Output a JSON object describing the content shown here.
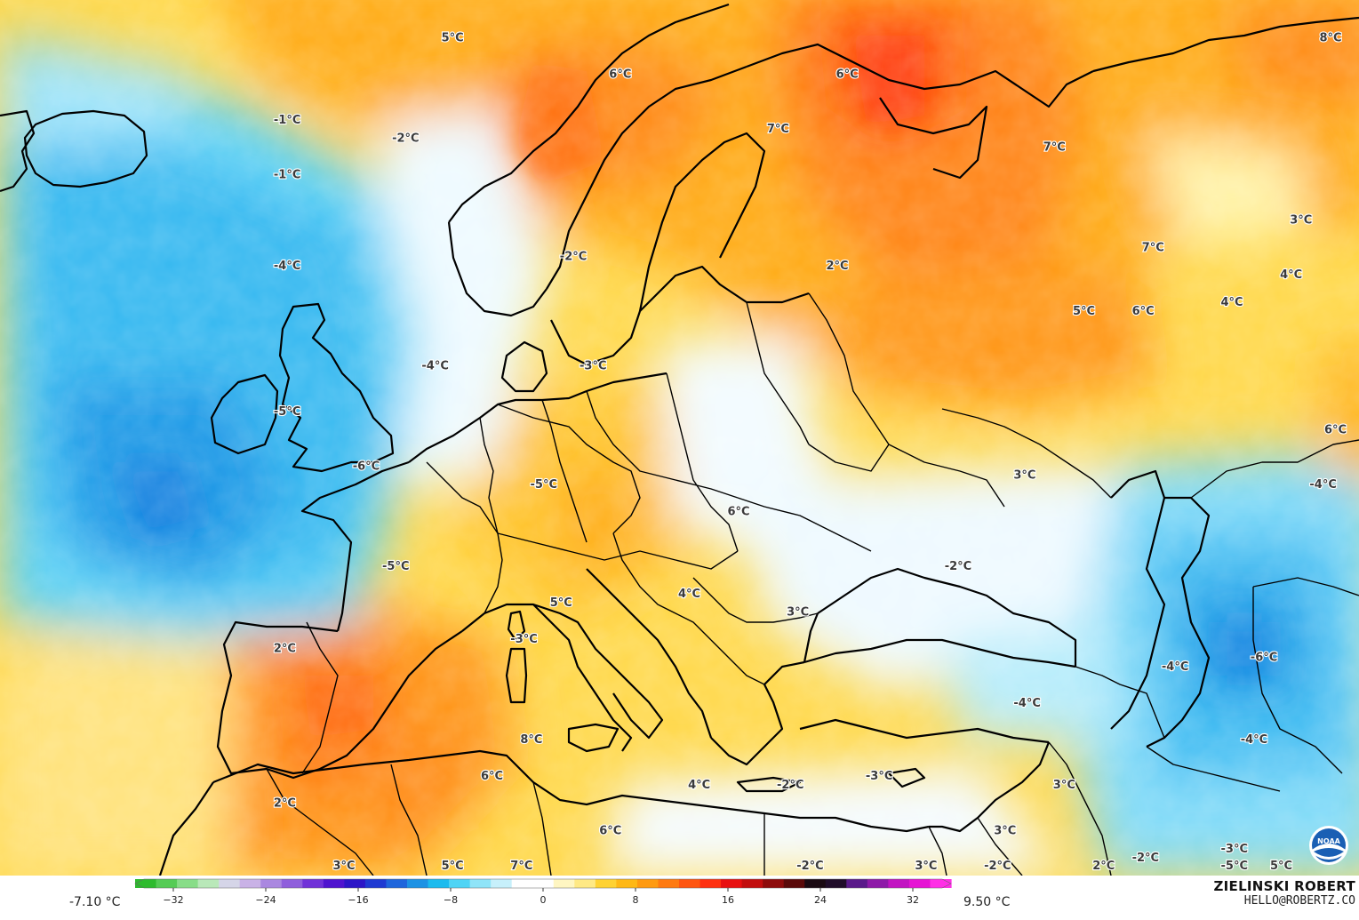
{
  "map": {
    "labels": [
      {
        "text": "5°C",
        "lon": -24,
        "lat": 72
      },
      {
        "text": "6°C",
        "lon": -7,
        "lat": 70
      },
      {
        "text": "6°C",
        "lon": 16,
        "lat": 70
      },
      {
        "text": "7°C",
        "lon": 9,
        "lat": 67
      },
      {
        "text": "7°C",
        "lon": 37,
        "lat": 66
      },
      {
        "text": "8°C",
        "lon": 65,
        "lat": 72
      },
      {
        "text": "-1°C",
        "lon": -41,
        "lat": 67.5
      },
      {
        "text": "-2°C",
        "lon": -29,
        "lat": 66.5
      },
      {
        "text": "-1°C",
        "lon": -41,
        "lat": 64.5
      },
      {
        "text": "-2°C",
        "lon": -12,
        "lat": 60
      },
      {
        "text": "2°C",
        "lon": 15,
        "lat": 59.5
      },
      {
        "text": "3°C",
        "lon": 62,
        "lat": 62
      },
      {
        "text": "7°C",
        "lon": 47,
        "lat": 60.5
      },
      {
        "text": "4°C",
        "lon": 61,
        "lat": 59
      },
      {
        "text": "4°C",
        "lon": 55,
        "lat": 57.5
      },
      {
        "text": "5°C",
        "lon": 40,
        "lat": 57
      },
      {
        "text": "6°C",
        "lon": 46,
        "lat": 57
      },
      {
        "text": "-4°C",
        "lon": -41,
        "lat": 59.5
      },
      {
        "text": "-4°C",
        "lon": -26,
        "lat": 54
      },
      {
        "text": "-3°C",
        "lon": -10,
        "lat": 54
      },
      {
        "text": "-5°C",
        "lon": -41,
        "lat": 51.5
      },
      {
        "text": "6°C",
        "lon": 66,
        "lat": 50.5
      },
      {
        "text": "-6°C",
        "lon": -33,
        "lat": 48.5
      },
      {
        "text": "-5°C",
        "lon": -15,
        "lat": 47.5
      },
      {
        "text": "3°C",
        "lon": 34,
        "lat": 48
      },
      {
        "text": "-4°C",
        "lon": 64,
        "lat": 47.5
      },
      {
        "text": "6°C",
        "lon": 5,
        "lat": 46
      },
      {
        "text": "-5°C",
        "lon": -30,
        "lat": 43
      },
      {
        "text": "-2°C",
        "lon": 27,
        "lat": 43
      },
      {
        "text": "4°C",
        "lon": 0,
        "lat": 41.5
      },
      {
        "text": "5°C",
        "lon": -13,
        "lat": 41
      },
      {
        "text": "3°C",
        "lon": 11,
        "lat": 40.5
      },
      {
        "text": "2°C",
        "lon": -41,
        "lat": 38.5
      },
      {
        "text": "-3°C",
        "lon": -17,
        "lat": 39
      },
      {
        "text": "-4°C",
        "lon": 49,
        "lat": 37.5
      },
      {
        "text": "-6°C",
        "lon": 58,
        "lat": 38
      },
      {
        "text": "-4°C",
        "lon": 34,
        "lat": 35.5
      },
      {
        "text": "8°C",
        "lon": -16,
        "lat": 33.5
      },
      {
        "text": "-4°C",
        "lon": 57,
        "lat": 33.5
      },
      {
        "text": "6°C",
        "lon": -20,
        "lat": 31.5
      },
      {
        "text": "4°C",
        "lon": 1,
        "lat": 31
      },
      {
        "text": "-2°C",
        "lon": 10,
        "lat": 31
      },
      {
        "text": "-3°C",
        "lon": 19,
        "lat": 31.5
      },
      {
        "text": "3°C",
        "lon": 38,
        "lat": 31
      },
      {
        "text": "2°C",
        "lon": -41,
        "lat": 30
      },
      {
        "text": "6°C",
        "lon": -8,
        "lat": 28.5
      },
      {
        "text": "3°C",
        "lon": 32,
        "lat": 28.5
      },
      {
        "text": "-2°C",
        "lon": 46,
        "lat": 27
      },
      {
        "text": "-3°C",
        "lon": 55,
        "lat": 27.5
      },
      {
        "text": "-6°C",
        "lon": 65,
        "lat": 27.5
      },
      {
        "text": "3°C",
        "lon": -35,
        "lat": 24.5
      },
      {
        "text": "7°C",
        "lon": -17,
        "lat": 24
      },
      {
        "text": "5°C",
        "lon": -24,
        "lat": 21.5
      },
      {
        "text": "-2°C",
        "lon": 12,
        "lat": 21.5
      },
      {
        "text": "3°C",
        "lon": 24,
        "lat": 21.5
      },
      {
        "text": "-2°C",
        "lon": 31,
        "lat": 21.5
      },
      {
        "text": "2°C",
        "lon": 42,
        "lat": 21.5
      },
      {
        "text": "-5°C",
        "lon": 55,
        "lat": 21.5
      },
      {
        "text": "5°C",
        "lon": 60,
        "lat": 21.5
      }
    ]
  },
  "legend": {
    "min_label": "-7.10 °C",
    "max_label": "9.50 °C",
    "ticks": [
      "−32",
      "−24",
      "−16",
      "−8",
      "0",
      "8",
      "16",
      "24",
      "32"
    ],
    "colors": [
      "#2dbb2d",
      "#55cc55",
      "#88dd88",
      "#b9e8b9",
      "#d5d5e8",
      "#c9b2e6",
      "#aa88e0",
      "#8f5fdc",
      "#7032d8",
      "#4f14cf",
      "#2c16c7",
      "#1f3ad2",
      "#1f66dc",
      "#1d92e4",
      "#1cbbee",
      "#4fd4f5",
      "#8fe4f8",
      "#c7f0fb",
      "#ffffff",
      "#ffffff",
      "#fff6c2",
      "#ffe985",
      "#ffd233",
      "#ffb815",
      "#ff9a10",
      "#ff7a10",
      "#ff5510",
      "#ff3010",
      "#e81010",
      "#c20e0e",
      "#8e0c0c",
      "#5a0a0a",
      "#1a0a12",
      "#200d2a",
      "#5a1a8a",
      "#8e1aa8",
      "#c214c2",
      "#e614d4",
      "#ff30e6"
    ]
  },
  "branding": {
    "author": "ZIELINSKI ROBERT",
    "email": "HELLO@ROBERTZ.CO",
    "logo_text": "NOAA"
  }
}
